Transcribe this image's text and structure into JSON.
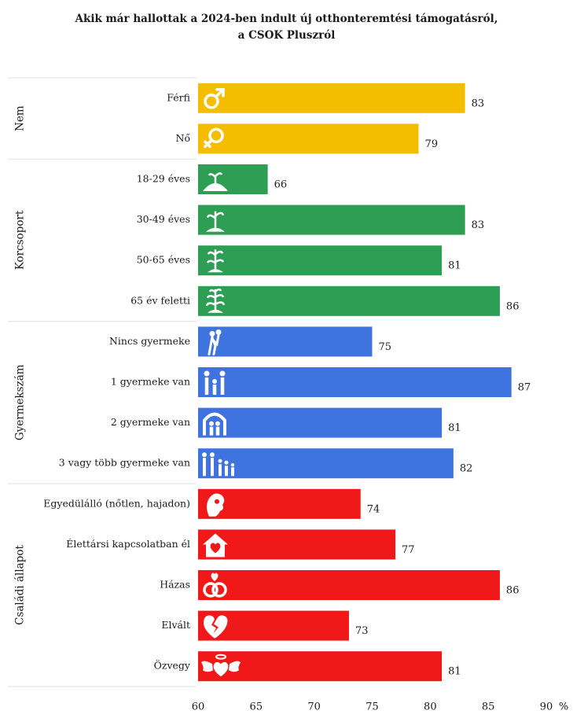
{
  "title_lines": [
    "Akik már hallottak a 2024-ben indult új otthonteremtési támogatásról,",
    "a CSOK Pluszról"
  ],
  "colors": {
    "Nem": "#F5BD00",
    "Korcsoport": "#2E9E54",
    "Gyermekszám": "#3F73DF",
    "Családi állapot": "#F01818",
    "grid": "#e0e0e0",
    "icon": "#ffffff"
  },
  "chart_data": {
    "type": "bar",
    "orientation": "horizontal",
    "title": "Akik már hallottak a 2024-ben indult új otthonteremtési támogatásról, a CSOK Pluszról",
    "xlabel": "",
    "xunit": "%",
    "xlim": [
      60,
      90
    ],
    "xticks": [
      60,
      65,
      70,
      75,
      80,
      85,
      90
    ],
    "groups": [
      {
        "name": "Nem",
        "bars": [
          {
            "label": "Férfi",
            "value": 83,
            "icon": "male-symbol-icon"
          },
          {
            "label": "Nő",
            "value": 79,
            "icon": "female-symbol-icon"
          }
        ]
      },
      {
        "name": "Korcsoport",
        "bars": [
          {
            "label": "18-29 éves",
            "value": 66,
            "icon": "sprout-icon"
          },
          {
            "label": "30-49 éves",
            "value": 83,
            "icon": "young-plant-icon"
          },
          {
            "label": "50-65 éves",
            "value": 81,
            "icon": "growing-plant-icon"
          },
          {
            "label": "65 év feletti",
            "value": 86,
            "icon": "mature-plant-icon"
          }
        ]
      },
      {
        "name": "Gyermekszám",
        "bars": [
          {
            "label": "Nincs gyermeke",
            "value": 75,
            "icon": "couple-icon"
          },
          {
            "label": "1 gyermeke van",
            "value": 87,
            "icon": "family-one-child-icon"
          },
          {
            "label": "2 gyermeke van",
            "value": 81,
            "icon": "family-two-children-icon"
          },
          {
            "label": "3 vagy több gyermeke van",
            "value": 82,
            "icon": "family-three-children-icon"
          }
        ]
      },
      {
        "name": "Családi állapot",
        "bars": [
          {
            "label": "Egyedülálló (nőtlen, hajadon)",
            "value": 74,
            "icon": "single-person-icon"
          },
          {
            "label": "Élettársi kapcsolatban él",
            "value": 77,
            "icon": "house-heart-icon"
          },
          {
            "label": "Házas",
            "value": 86,
            "icon": "wedding-rings-icon"
          },
          {
            "label": "Elvált",
            "value": 73,
            "icon": "broken-heart-icon"
          },
          {
            "label": "Özvegy",
            "value": 81,
            "icon": "winged-heart-icon"
          }
        ]
      }
    ],
    "grid": false,
    "legend": "none"
  }
}
